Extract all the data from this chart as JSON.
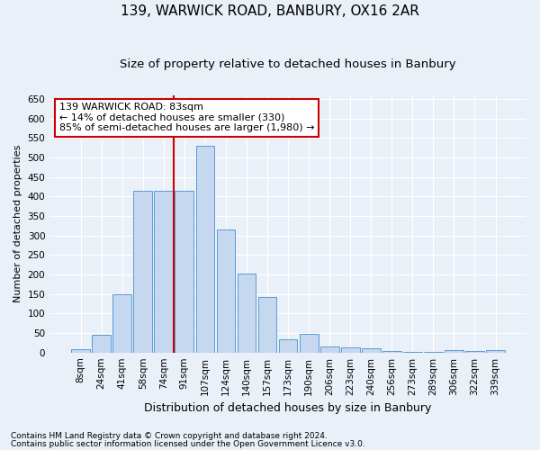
{
  "title": "139, WARWICK ROAD, BANBURY, OX16 2AR",
  "subtitle": "Size of property relative to detached houses in Banbury",
  "xlabel": "Distribution of detached houses by size in Banbury",
  "ylabel": "Number of detached properties",
  "footnote1": "Contains HM Land Registry data © Crown copyright and database right 2024.",
  "footnote2": "Contains public sector information licensed under the Open Government Licence v3.0.",
  "categories": [
    "8sqm",
    "24sqm",
    "41sqm",
    "58sqm",
    "74sqm",
    "91sqm",
    "107sqm",
    "124sqm",
    "140sqm",
    "157sqm",
    "173sqm",
    "190sqm",
    "206sqm",
    "223sqm",
    "240sqm",
    "256sqm",
    "273sqm",
    "289sqm",
    "306sqm",
    "322sqm",
    "339sqm"
  ],
  "values": [
    8,
    45,
    150,
    415,
    415,
    415,
    530,
    315,
    203,
    143,
    33,
    48,
    15,
    13,
    10,
    5,
    2,
    2,
    6,
    5,
    7
  ],
  "bar_color": "#c5d8f0",
  "bar_edge_color": "#5b9bd5",
  "vline_x": 4.5,
  "vline_color": "#cc0000",
  "annotation_text": "139 WARWICK ROAD: 83sqm\n← 14% of detached houses are smaller (330)\n85% of semi-detached houses are larger (1,980) →",
  "annotation_box_facecolor": "#ffffff",
  "annotation_box_edgecolor": "#cc0000",
  "ylim": [
    0,
    660
  ],
  "yticks": [
    0,
    50,
    100,
    150,
    200,
    250,
    300,
    350,
    400,
    450,
    500,
    550,
    600,
    650
  ],
  "bg_color": "#eaf0f8",
  "plot_bg_color": "#eaf0f8",
  "grid_color": "#ffffff",
  "title_fontsize": 11,
  "subtitle_fontsize": 9.5,
  "xlabel_fontsize": 9,
  "ylabel_fontsize": 8,
  "tick_fontsize": 7.5,
  "annotation_fontsize": 8,
  "footnote_fontsize": 6.5
}
